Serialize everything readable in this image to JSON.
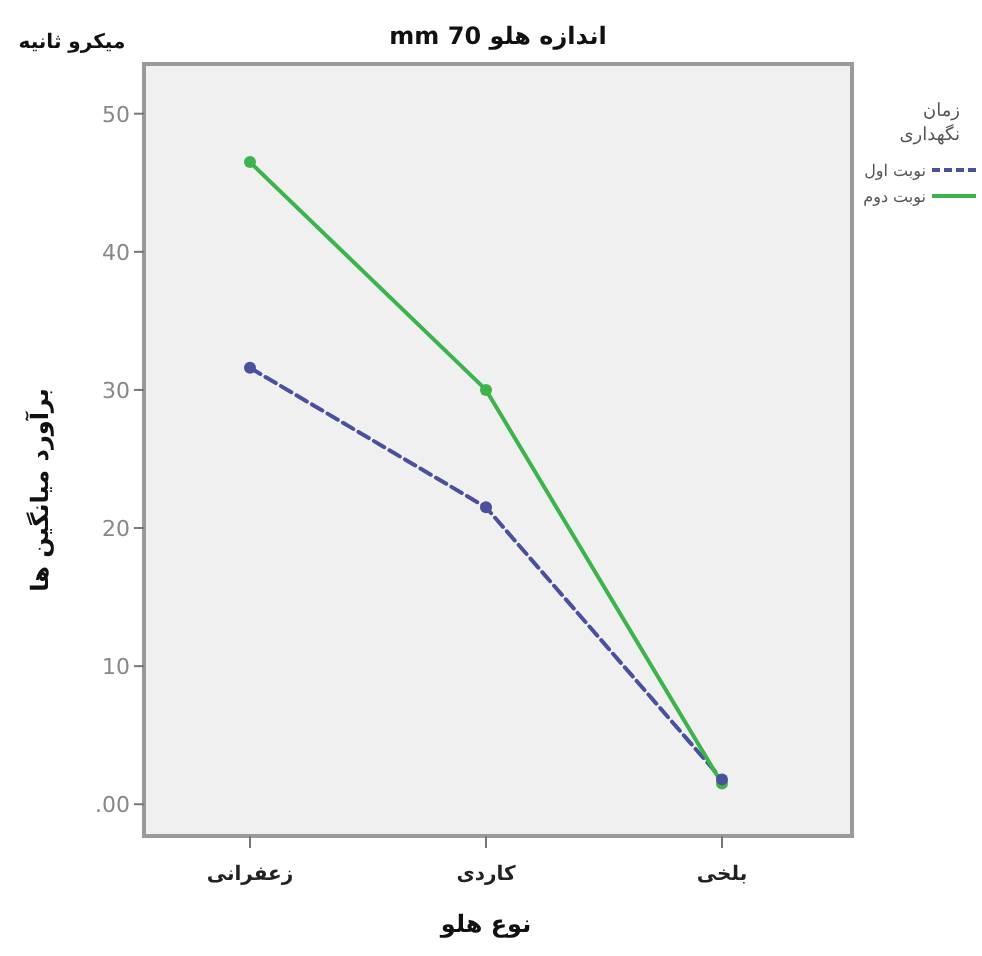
{
  "chart_data": {
    "type": "line",
    "title": "اندازه هلو 70 mm",
    "xlabel": "نوع هلو",
    "ylabel": "برآورد میانگین ها",
    "legend_title": "زمان نگهداری",
    "annotations": [
      "میکرو ثانیه"
    ],
    "categories": [
      "زعفرانی",
      "کاردی",
      "بلخی"
    ],
    "ylim": [
      -2.3,
      53.6
    ],
    "yticks": [
      {
        "value": 0,
        "label": ".00"
      },
      10,
      20,
      30,
      40,
      50
    ],
    "legend": "right",
    "marker": "circle",
    "grid": false,
    "series": [
      {
        "name": "نوبت اول",
        "color": "#4a4f9e",
        "values": [
          31.6,
          21.5,
          1.8
        ],
        "line_style": "dashed"
      },
      {
        "name": "نوبت دوم",
        "color": "#3cb44b",
        "values": [
          46.5,
          30,
          1.5
        ],
        "line_style": "solid"
      }
    ]
  }
}
